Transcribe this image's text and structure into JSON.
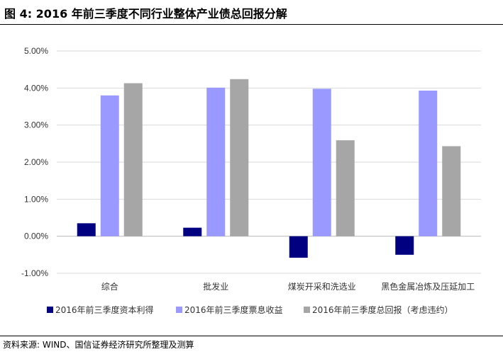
{
  "header": {
    "title": "图 4:  2016 年前三季度不同行业整体产业债总回报分解"
  },
  "footer": {
    "source": "资料来源: WIND、国信证券经济研究所整理及测算"
  },
  "chart_data": {
    "type": "bar",
    "title": "",
    "xlabel": "",
    "ylabel": "",
    "ylim": [
      -0.01,
      0.05
    ],
    "yticks": [
      -0.01,
      0,
      0.01,
      0.02,
      0.03,
      0.04,
      0.05
    ],
    "yticklabels": [
      "-1.00%",
      "0.00%",
      "1.00%",
      "2.00%",
      "3.00%",
      "4.00%",
      "5.00%"
    ],
    "categories": [
      "综合",
      "批发业",
      "煤炭开采和洗选业",
      "黑色金属冶炼及压延加工"
    ],
    "grid": true,
    "legend_position": "bottom",
    "series": [
      {
        "name": "2016年前三季度资本利得",
        "color": "#000080",
        "values": [
          0.0035,
          0.0023,
          -0.0058,
          -0.005
        ]
      },
      {
        "name": "2016年前三季度票息收益",
        "color": "#9999FF",
        "values": [
          0.038,
          0.0401,
          0.0398,
          0.0393
        ]
      },
      {
        "name": "2016年前三季度总回报（考虑违约）",
        "color": "#A6A6A6",
        "values": [
          0.0413,
          0.0424,
          0.0259,
          0.0243
        ]
      }
    ]
  }
}
